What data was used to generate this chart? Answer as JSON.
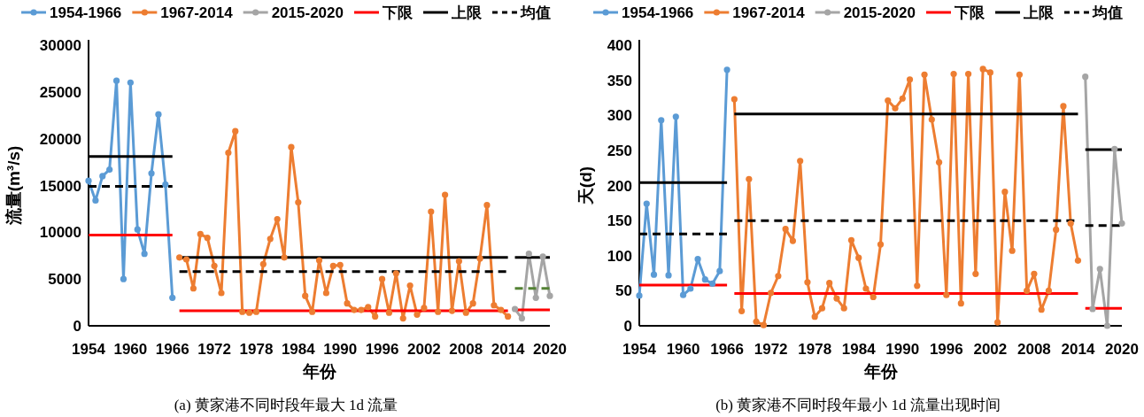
{
  "chart_data": [
    {
      "type": "line",
      "xlabel": "年份",
      "ylabel": "流量(m³/s)",
      "annotations": [
        "(a)  黄家港不同时段年最大 1d 流量"
      ],
      "xlim": [
        1954,
        2020
      ],
      "ylim": [
        0,
        30000
      ],
      "xticks": [
        1954,
        1960,
        1966,
        1972,
        1978,
        1984,
        1990,
        1996,
        2002,
        2008,
        2014,
        2020
      ],
      "yticks": [
        0,
        5000,
        10000,
        15000,
        20000,
        25000,
        30000
      ],
      "grid": false,
      "legend": "top",
      "marker": "circle",
      "line_style": "solid",
      "series": [
        {
          "name": "1954-1966",
          "color": "#5b9bd5",
          "x": [
            1954,
            1955,
            1956,
            1957,
            1958,
            1959,
            1960,
            1961,
            1962,
            1963,
            1964,
            1965,
            1966
          ],
          "values": [
            15500,
            13400,
            16000,
            16700,
            26200,
            5000,
            26000,
            10300,
            7700,
            16300,
            22600,
            15100,
            3000
          ]
        },
        {
          "name": "1967-2014",
          "color": "#ed7d31",
          "x": [
            1967,
            1968,
            1969,
            1970,
            1971,
            1972,
            1973,
            1974,
            1975,
            1976,
            1977,
            1978,
            1979,
            1980,
            1981,
            1982,
            1983,
            1984,
            1985,
            1986,
            1987,
            1988,
            1989,
            1990,
            1991,
            1992,
            1993,
            1994,
            1995,
            1996,
            1997,
            1998,
            1999,
            2000,
            2001,
            2002,
            2003,
            2004,
            2005,
            2006,
            2007,
            2008,
            2009,
            2010,
            2011,
            2012,
            2013,
            2014
          ],
          "values": [
            7300,
            7100,
            4000,
            9800,
            9400,
            6400,
            3500,
            18500,
            20800,
            1500,
            1400,
            1500,
            6600,
            9300,
            11400,
            7300,
            19100,
            13200,
            3200,
            1500,
            7000,
            3500,
            6400,
            6500,
            2400,
            1700,
            1700,
            2000,
            1000,
            5000,
            1400,
            5600,
            800,
            4300,
            1200,
            1900,
            12200,
            1500,
            14000,
            1600,
            6900,
            1400,
            2400,
            7200,
            12900,
            2200,
            1700,
            1000
          ]
        },
        {
          "name": "2015-2020",
          "color": "#a5a5a5",
          "x": [
            2015,
            2016,
            2017,
            2018,
            2019,
            2020
          ],
          "values": [
            1800,
            800,
            7700,
            3000,
            7400,
            3200
          ]
        },
        {
          "name": "下限",
          "color": "#ff0000",
          "x": [
            1954,
            1966
          ],
          "values": [
            9700,
            9700
          ],
          "marker": "none",
          "line_style": "solid"
        },
        {
          "name": "上限",
          "color": "#000000",
          "x": [
            1954,
            1966
          ],
          "values": [
            18100,
            18100
          ],
          "marker": "none",
          "line_style": "solid"
        },
        {
          "name": "均值",
          "color": "#000000",
          "x": [
            1954,
            1966
          ],
          "values": [
            14900,
            14900
          ],
          "marker": "none",
          "line_style": "dashed"
        },
        {
          "color": "#ff0000",
          "x": [
            1967,
            2014
          ],
          "values": [
            1600,
            1600
          ],
          "marker": "none",
          "line_style": "solid"
        },
        {
          "color": "#000000",
          "x": [
            1967,
            2014
          ],
          "values": [
            7300,
            7300
          ],
          "marker": "none",
          "line_style": "solid"
        },
        {
          "color": "#000000",
          "x": [
            1967,
            2014
          ],
          "values": [
            5800,
            5800
          ],
          "marker": "none",
          "line_style": "dashed"
        },
        {
          "color": "#ff0000",
          "x": [
            2015,
            2020
          ],
          "values": [
            1700,
            1700
          ],
          "marker": "none",
          "line_style": "solid"
        },
        {
          "color": "#000000",
          "x": [
            2015,
            2020
          ],
          "values": [
            7300,
            7300
          ],
          "marker": "none",
          "line_style": "solid"
        },
        {
          "color": "#548235",
          "x": [
            2015,
            2020
          ],
          "values": [
            4000,
            4000
          ],
          "marker": "none",
          "line_style": "dashed"
        }
      ]
    },
    {
      "type": "line",
      "xlabel": "年份",
      "ylabel": "天(d)",
      "annotations": [
        "(b)  黄家港不同时段年最小 1d 流量出现时间"
      ],
      "xlim": [
        1954,
        2020
      ],
      "ylim": [
        0,
        400
      ],
      "xticks": [
        1954,
        1960,
        1966,
        1972,
        1978,
        1984,
        1990,
        1996,
        2002,
        2008,
        2014,
        2020
      ],
      "yticks": [
        0,
        50,
        100,
        150,
        200,
        250,
        300,
        350,
        400
      ],
      "grid": false,
      "legend": "top",
      "marker": "circle",
      "line_style": "solid",
      "series": [
        {
          "name": "1954-1966",
          "color": "#5b9bd5",
          "x": [
            1954,
            1955,
            1956,
            1957,
            1958,
            1959,
            1960,
            1961,
            1962,
            1963,
            1964,
            1965,
            1966
          ],
          "values": [
            43,
            174,
            73,
            293,
            72,
            298,
            44,
            53,
            95,
            66,
            60,
            78,
            365
          ]
        },
        {
          "name": "1967-2014",
          "color": "#ed7d31",
          "x": [
            1967,
            1968,
            1969,
            1970,
            1971,
            1972,
            1973,
            1974,
            1975,
            1976,
            1977,
            1978,
            1979,
            1980,
            1981,
            1982,
            1983,
            1984,
            1985,
            1986,
            1987,
            1988,
            1989,
            1990,
            1991,
            1992,
            1993,
            1994,
            1995,
            1996,
            1997,
            1998,
            1999,
            2000,
            2001,
            2002,
            2003,
            2004,
            2005,
            2006,
            2007,
            2008,
            2009,
            2010,
            2011,
            2012,
            2013,
            2014
          ],
          "values": [
            323,
            21,
            209,
            6,
            1,
            47,
            71,
            138,
            121,
            235,
            62,
            13,
            25,
            61,
            39,
            25,
            122,
            97,
            53,
            41,
            116,
            321,
            310,
            324,
            351,
            57,
            358,
            294,
            233,
            44,
            359,
            32,
            359,
            74,
            366,
            361,
            5,
            191,
            107,
            358,
            50,
            74,
            23,
            50,
            137,
            313,
            146,
            93
          ]
        },
        {
          "name": "2015-2020",
          "color": "#a5a5a5",
          "x": [
            2015,
            2016,
            2017,
            2018,
            2019,
            2020
          ],
          "values": [
            355,
            24,
            81,
            0,
            252,
            146
          ]
        },
        {
          "name": "下限",
          "color": "#ff0000",
          "x": [
            1954,
            1966
          ],
          "values": [
            58,
            58
          ],
          "marker": "none",
          "line_style": "solid"
        },
        {
          "name": "上限",
          "color": "#000000",
          "x": [
            1954,
            1966
          ],
          "values": [
            204,
            204
          ],
          "marker": "none",
          "line_style": "solid"
        },
        {
          "name": "均值",
          "color": "#000000",
          "x": [
            1954,
            1966
          ],
          "values": [
            131,
            131
          ],
          "marker": "none",
          "line_style": "dashed"
        },
        {
          "color": "#ff0000",
          "x": [
            1967,
            2014
          ],
          "values": [
            46,
            46
          ],
          "marker": "none",
          "line_style": "solid"
        },
        {
          "color": "#000000",
          "x": [
            1967,
            2014
          ],
          "values": [
            302,
            302
          ],
          "marker": "none",
          "line_style": "solid"
        },
        {
          "color": "#000000",
          "x": [
            1967,
            2014
          ],
          "values": [
            150,
            150
          ],
          "marker": "none",
          "line_style": "dashed"
        },
        {
          "color": "#ff0000",
          "x": [
            2015,
            2020
          ],
          "values": [
            25,
            25
          ],
          "marker": "none",
          "line_style": "solid"
        },
        {
          "color": "#000000",
          "x": [
            2015,
            2020
          ],
          "values": [
            251,
            251
          ],
          "marker": "none",
          "line_style": "solid"
        },
        {
          "color": "#000000",
          "x": [
            2015,
            2020
          ],
          "values": [
            143,
            143
          ],
          "marker": "none",
          "line_style": "dashed"
        }
      ]
    }
  ]
}
